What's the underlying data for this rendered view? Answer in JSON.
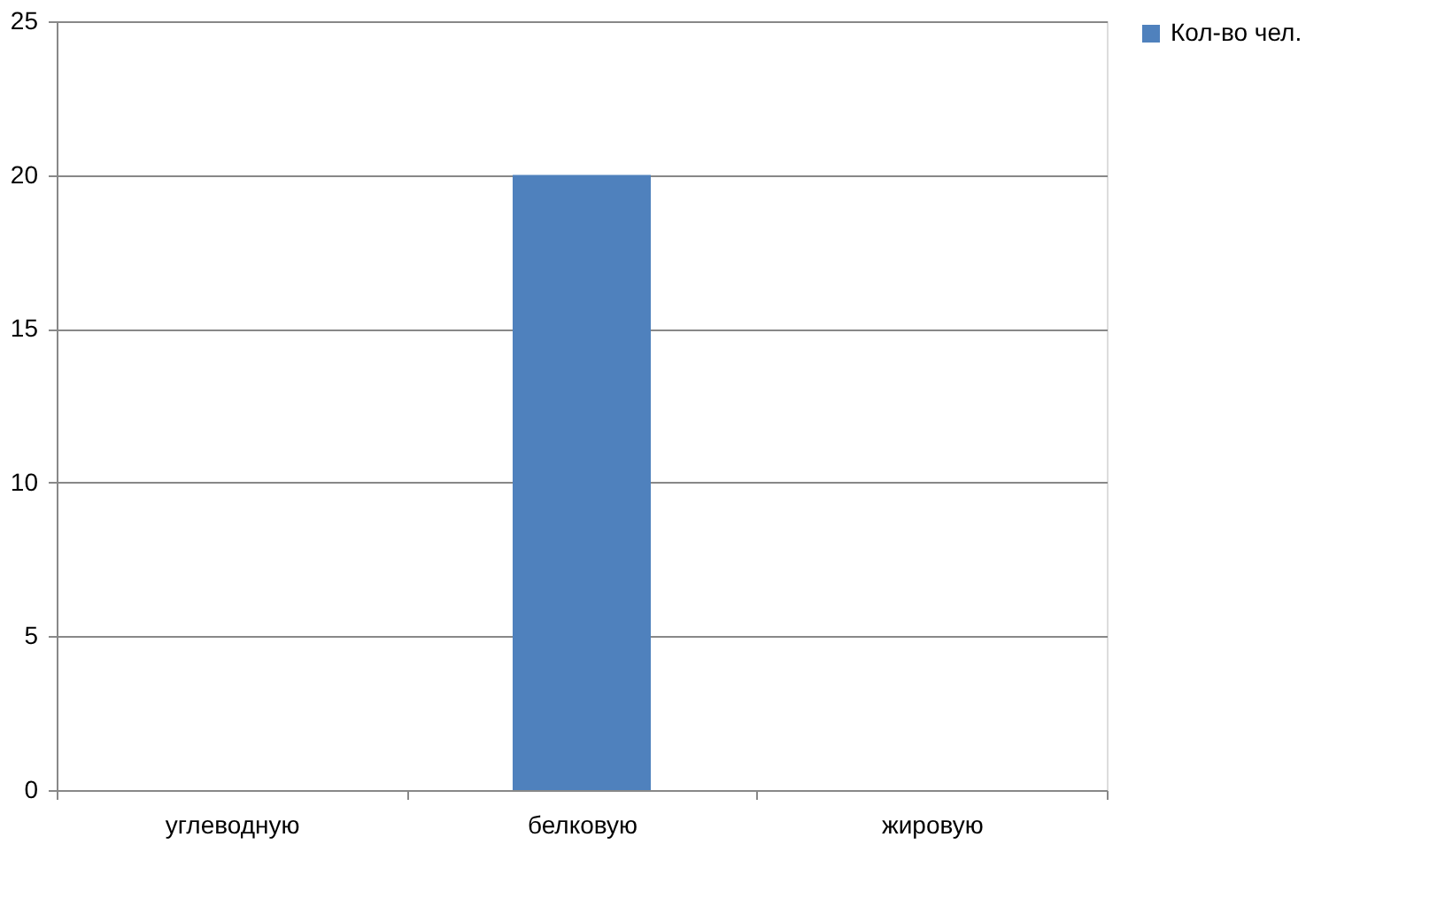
{
  "chart_data": {
    "type": "bar",
    "categories": [
      "углеводную",
      "белковую",
      "жировую"
    ],
    "series": [
      {
        "name": "Кол-во чел.",
        "color": "#4f81bd",
        "values": [
          0,
          20,
          0
        ]
      }
    ],
    "ylim": [
      0,
      25
    ],
    "yticks": [
      0,
      5,
      10,
      15,
      20,
      25
    ],
    "grid": "y",
    "legend": "right"
  }
}
